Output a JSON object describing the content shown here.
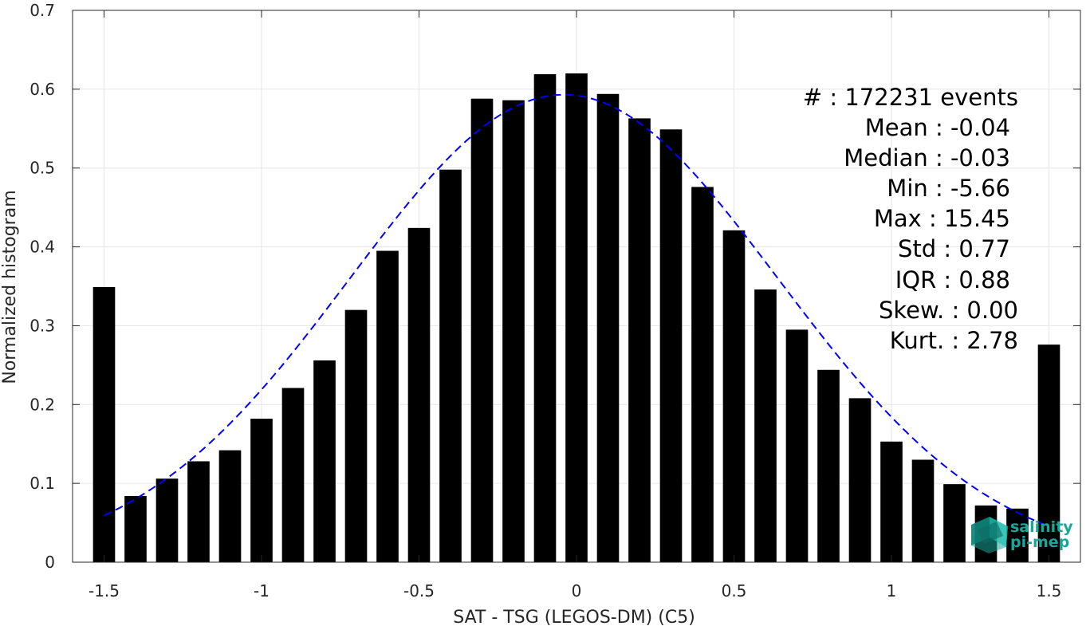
{
  "chart_data": {
    "type": "bar",
    "xlabel": "SAT - TSG (LEGOS-DM) (C5)",
    "ylabel": "Normalized histogram",
    "xlim": [
      -1.6,
      1.6
    ],
    "ylim": [
      0,
      0.7
    ],
    "xticks": [
      "-1.5",
      "-1",
      "-0.5",
      "0",
      "0.5",
      "1",
      "1.5"
    ],
    "xtick_values": [
      -1.5,
      -1,
      -0.5,
      0,
      0.5,
      1,
      1.5
    ],
    "yticks": [
      "0",
      "0.1",
      "0.2",
      "0.3",
      "0.4",
      "0.5",
      "0.6",
      "0.7"
    ],
    "ytick_values": [
      0,
      0.1,
      0.2,
      0.3,
      0.4,
      0.5,
      0.6,
      0.7
    ],
    "grid": true,
    "bar_color": "#000000",
    "bar_width": 0.07,
    "bars": [
      {
        "x": -1.5,
        "y": 0.349
      },
      {
        "x": -1.4,
        "y": 0.084
      },
      {
        "x": -1.3,
        "y": 0.106
      },
      {
        "x": -1.2,
        "y": 0.128
      },
      {
        "x": -1.1,
        "y": 0.142
      },
      {
        "x": -1.0,
        "y": 0.182
      },
      {
        "x": -0.9,
        "y": 0.221
      },
      {
        "x": -0.8,
        "y": 0.256
      },
      {
        "x": -0.7,
        "y": 0.32
      },
      {
        "x": -0.6,
        "y": 0.395
      },
      {
        "x": -0.5,
        "y": 0.424
      },
      {
        "x": -0.4,
        "y": 0.498
      },
      {
        "x": -0.3,
        "y": 0.588
      },
      {
        "x": -0.2,
        "y": 0.586
      },
      {
        "x": -0.1,
        "y": 0.619
      },
      {
        "x": 0.0,
        "y": 0.62
      },
      {
        "x": 0.1,
        "y": 0.594
      },
      {
        "x": 0.2,
        "y": 0.563
      },
      {
        "x": 0.3,
        "y": 0.549
      },
      {
        "x": 0.4,
        "y": 0.476
      },
      {
        "x": 0.5,
        "y": 0.421
      },
      {
        "x": 0.6,
        "y": 0.346
      },
      {
        "x": 0.7,
        "y": 0.295
      },
      {
        "x": 0.8,
        "y": 0.244
      },
      {
        "x": 0.9,
        "y": 0.208
      },
      {
        "x": 1.0,
        "y": 0.153
      },
      {
        "x": 1.1,
        "y": 0.13
      },
      {
        "x": 1.2,
        "y": 0.099
      },
      {
        "x": 1.3,
        "y": 0.072
      },
      {
        "x": 1.4,
        "y": 0.068
      },
      {
        "x": 1.5,
        "y": 0.276
      }
    ],
    "fit_curve": {
      "type": "gaussian",
      "style": "dashed",
      "color": "#0000ff",
      "mean": -0.04,
      "std": 0.68,
      "peak": 0.593,
      "x_range": [
        -1.5,
        1.5
      ]
    }
  },
  "stats": [
    {
      "label": "#  ",
      "value": "172231 events",
      "text": "#  : 172231 events"
    },
    {
      "label": "Mean",
      "value": "-0.04",
      "text": "Mean : -0.04"
    },
    {
      "label": "Median",
      "value": "-0.03",
      "text": "Median : -0.03"
    },
    {
      "label": "Min",
      "value": "-5.66",
      "text": "Min : -5.66"
    },
    {
      "label": "Max",
      "value": "15.45",
      "text": "Max : 15.45"
    },
    {
      "label": "Std",
      "value": "0.77",
      "text": "Std : 0.77"
    },
    {
      "label": "IQR",
      "value": "0.88",
      "text": "IQR : 0.88"
    },
    {
      "label": "Skew.",
      "value": "0.00",
      "text": "Skew. : 0.00"
    },
    {
      "label": "Kurt.",
      "value": "2.78",
      "text": "Kurt. : 2.78"
    }
  ],
  "logo": {
    "line1": "salinity",
    "line2": "pi-mep",
    "color": "#16a89a"
  }
}
